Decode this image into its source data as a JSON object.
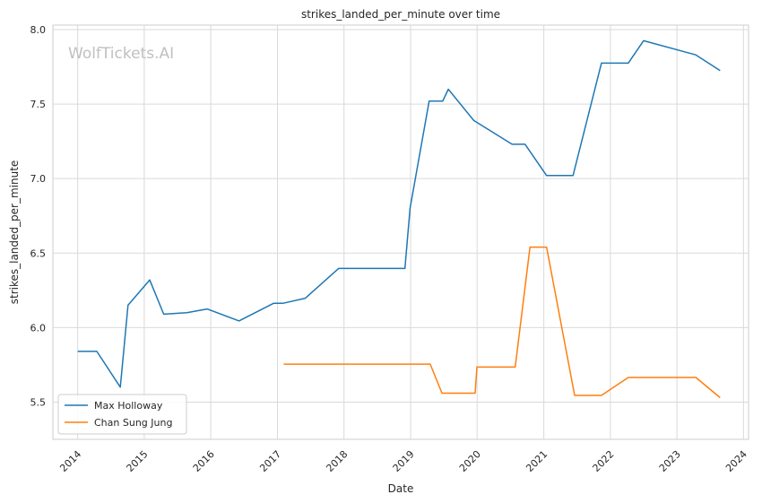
{
  "chart_data": {
    "type": "line",
    "title": "strikes_landed_per_minute over time",
    "xlabel": "Date",
    "ylabel": "strikes_landed_per_minute",
    "watermark": "WolfTickets.AI",
    "x_ticks": [
      "2014",
      "2015",
      "2016",
      "2017",
      "2018",
      "2019",
      "2020",
      "2021",
      "2022",
      "2023",
      "2024"
    ],
    "y_ticks": [
      "5.5",
      "6.0",
      "6.5",
      "7.0",
      "7.5",
      "8.0"
    ],
    "xlim": [
      "2013-08-18",
      "2024-01-29"
    ],
    "ylim": [
      5.25,
      8.03
    ],
    "grid": true,
    "legend_position": "lower-left",
    "series": [
      {
        "name": "Max Holloway",
        "color": "#1f77b4",
        "points": [
          [
            "2014-01-01",
            5.84
          ],
          [
            "2014-04-16",
            5.84
          ],
          [
            "2014-08-23",
            5.6
          ],
          [
            "2014-10-04",
            6.15
          ],
          [
            "2015-01-31",
            6.32
          ],
          [
            "2015-04-18",
            6.09
          ],
          [
            "2015-08-23",
            6.1
          ],
          [
            "2015-12-12",
            6.125
          ],
          [
            "2016-06-04",
            6.045
          ],
          [
            "2016-12-10",
            6.163
          ],
          [
            "2017-01-30",
            6.163
          ],
          [
            "2017-06-03",
            6.197
          ],
          [
            "2017-12-02",
            6.397
          ],
          [
            "2018-12-01",
            6.397
          ],
          [
            "2018-12-29",
            6.8
          ],
          [
            "2019-04-13",
            7.52
          ],
          [
            "2019-06-26",
            7.52
          ],
          [
            "2019-07-27",
            7.6
          ],
          [
            "2019-12-14",
            7.39
          ],
          [
            "2020-07-11",
            7.23
          ],
          [
            "2020-09-20",
            7.23
          ],
          [
            "2021-01-16",
            7.02
          ],
          [
            "2021-06-10",
            7.02
          ],
          [
            "2021-11-13",
            7.775
          ],
          [
            "2022-04-09",
            7.775
          ],
          [
            "2022-07-02",
            7.925
          ],
          [
            "2023-04-15",
            7.83
          ],
          [
            "2023-08-26",
            7.725
          ]
        ]
      },
      {
        "name": "Chan Sung Jung",
        "color": "#ff7f0e",
        "points": [
          [
            "2017-02-04",
            5.755
          ],
          [
            "2019-04-19",
            5.755
          ],
          [
            "2019-06-22",
            5.56
          ],
          [
            "2019-12-21",
            5.56
          ],
          [
            "2019-12-31",
            5.735
          ],
          [
            "2020-07-28",
            5.735
          ],
          [
            "2020-10-17",
            6.54
          ],
          [
            "2021-01-16",
            6.54
          ],
          [
            "2021-06-19",
            5.545
          ],
          [
            "2021-11-13",
            5.545
          ],
          [
            "2022-04-09",
            5.665
          ],
          [
            "2023-04-15",
            5.665
          ],
          [
            "2023-08-26",
            5.53
          ]
        ]
      }
    ]
  }
}
